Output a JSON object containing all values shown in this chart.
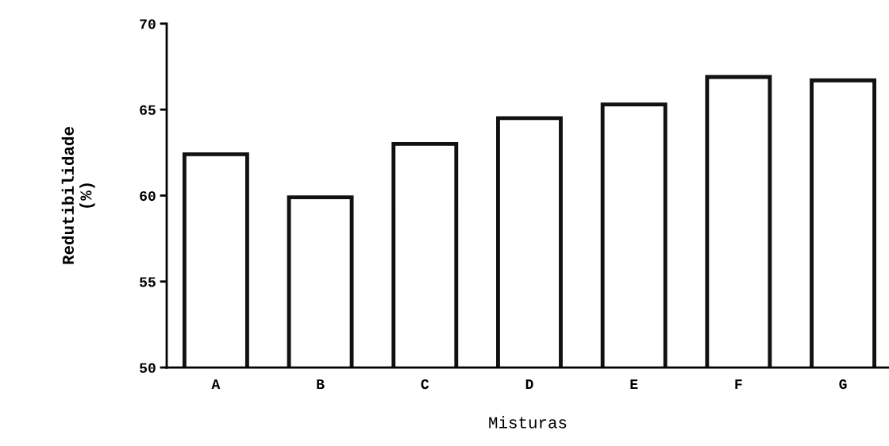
{
  "chart_data": {
    "type": "bar",
    "xlabel": "Misturas",
    "ylabel": "Redutibilidade\n(%)",
    "categories": [
      "A",
      "B",
      "C",
      "D",
      "E",
      "F",
      "G"
    ],
    "values": [
      62.4,
      59.9,
      63.0,
      64.5,
      65.3,
      66.9,
      66.7
    ],
    "color": "#ffffff",
    "ylim": [
      50,
      70
    ],
    "yticks": [
      50,
      55,
      60,
      65,
      70
    ],
    "grid": false,
    "legend": false
  }
}
